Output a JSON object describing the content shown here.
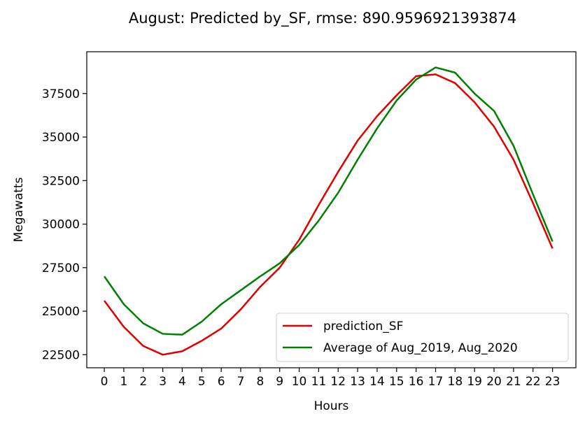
{
  "chart_data": {
    "type": "line",
    "title": "August: Predicted by_SF, rmse: 890.9596921393874",
    "xlabel": "Hours",
    "ylabel": "Megawatts",
    "x": [
      0,
      1,
      2,
      3,
      4,
      5,
      6,
      7,
      8,
      9,
      10,
      11,
      12,
      13,
      14,
      15,
      16,
      17,
      18,
      19,
      20,
      21,
      22,
      23
    ],
    "xlim": [
      -0.9,
      24.2
    ],
    "ylim": [
      21750,
      39900
    ],
    "yticks": [
      22500,
      25000,
      27500,
      30000,
      32500,
      35000,
      37500
    ],
    "grid": false,
    "legend_position": "lower right",
    "series": [
      {
        "name": "prediction_SF",
        "color": "#e00000",
        "values": [
          25600,
          24100,
          23000,
          22500,
          22700,
          23300,
          24000,
          25100,
          26400,
          27500,
          29100,
          31100,
          33000,
          34800,
          36200,
          37400,
          38500,
          38600,
          38100,
          37000,
          35600,
          33700,
          31200,
          28600
        ]
      },
      {
        "name": "Average of Aug_2019, Aug_2020",
        "color": "#008000",
        "values": [
          27000,
          25400,
          24300,
          23700,
          23650,
          24400,
          25400,
          26200,
          27000,
          27750,
          28800,
          30200,
          31800,
          33700,
          35500,
          37100,
          38300,
          39000,
          38700,
          37500,
          36500,
          34500,
          31700,
          29000
        ]
      }
    ]
  }
}
